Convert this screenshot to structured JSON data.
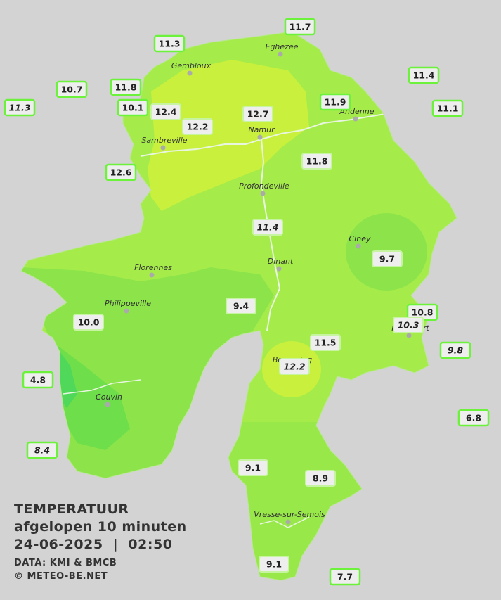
{
  "map": {
    "legend": {
      "title": "TEMPERATUUR",
      "subtitle": "afgelopen 10 minuten",
      "datetime": "24-06-2025  |  02:50",
      "source": "DATA: KMI & BMCB",
      "credit": "© METEO-BE.NET"
    },
    "cities": [
      "Eghezee",
      "Gembloux",
      "Andenne",
      "Namur",
      "Sambreville",
      "Profondeville",
      "Ciney",
      "Dinant",
      "Florennes",
      "Philippeville",
      "Rochefort",
      "Beauraing",
      "Couvin",
      "Vresse-sur-Semois"
    ],
    "stations": [
      {
        "value": 11.7,
        "italic": false
      },
      {
        "value": 11.3,
        "italic": false
      },
      {
        "value": 11.4,
        "italic": false
      },
      {
        "value": 10.7,
        "italic": false
      },
      {
        "value": 11.8,
        "italic": false
      },
      {
        "value": 11.3,
        "italic": true
      },
      {
        "value": 10.1,
        "italic": false
      },
      {
        "value": 12.4,
        "italic": false
      },
      {
        "value": 12.7,
        "italic": false
      },
      {
        "value": 11.9,
        "italic": false
      },
      {
        "value": 11.1,
        "italic": false
      },
      {
        "value": 12.2,
        "italic": false
      },
      {
        "value": 11.8,
        "italic": false
      },
      {
        "value": 12.6,
        "italic": false
      },
      {
        "value": 11.4,
        "italic": true
      },
      {
        "value": 9.7,
        "italic": false
      },
      {
        "value": 9.4,
        "italic": false
      },
      {
        "value": 10.8,
        "italic": false
      },
      {
        "value": 10.3,
        "italic": true
      },
      {
        "value": {
          "value": 10,
          "label": "10.0"
        },
        "italic": false
      },
      {
        "value": 11.5,
        "italic": false
      },
      {
        "value": 9.8,
        "italic": true
      },
      {
        "value": 12.2,
        "italic": true
      },
      {
        "value": 4.8,
        "italic": false
      },
      {
        "value": 6.8,
        "italic": false
      },
      {
        "value": 8.4,
        "italic": true
      },
      {
        "value": 9.1,
        "italic": false
      },
      {
        "value": 8.9,
        "italic": false
      },
      {
        "value": 9.1,
        "italic": false
      },
      {
        "value": 7.7,
        "italic": false
      }
    ]
  }
}
